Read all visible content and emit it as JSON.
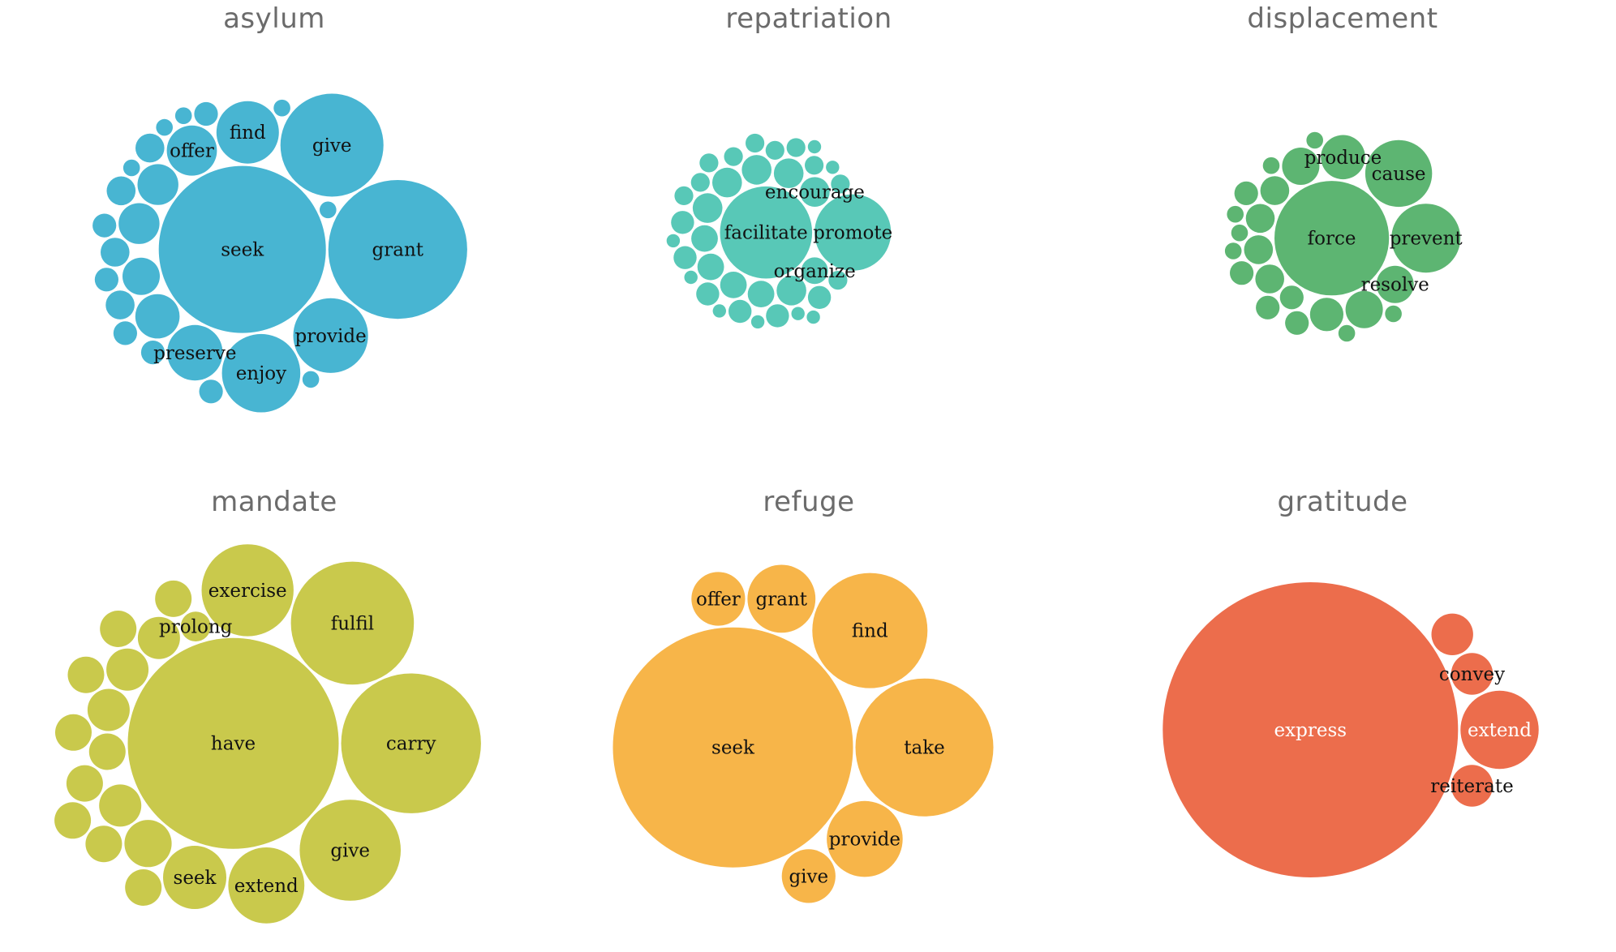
{
  "colors": {
    "asylum": "#48b5d2",
    "repatriation": "#58c8b7",
    "displacement": "#5db572",
    "mandate": "#c9c94c",
    "refuge": "#f7b549",
    "gratitude": "#ec6d4c",
    "label_dark": "#111111",
    "label_light": "#ffffff"
  },
  "chart_data": [
    {
      "type": "packed-bubble",
      "title": "asylum",
      "color_key": "asylum",
      "bubbles": [
        {
          "label": "seek",
          "value": 100
        },
        {
          "label": "grant",
          "value": 69
        },
        {
          "label": "give",
          "value": 38
        },
        {
          "label": "provide",
          "value": 20
        },
        {
          "label": "enjoy",
          "value": 22
        },
        {
          "label": "find",
          "value": 14
        },
        {
          "label": "preserve",
          "value": 11
        },
        {
          "label": "offer",
          "value": 9
        },
        {
          "label": "",
          "value": 7
        },
        {
          "label": "",
          "value": 6
        },
        {
          "label": "",
          "value": 6
        },
        {
          "label": "",
          "value": 5
        },
        {
          "label": "",
          "value": 3
        },
        {
          "label": "",
          "value": 3
        },
        {
          "label": "",
          "value": 3
        },
        {
          "label": "",
          "value": 3
        },
        {
          "label": "",
          "value": 2
        },
        {
          "label": "",
          "value": 2
        },
        {
          "label": "",
          "value": 2
        },
        {
          "label": "",
          "value": 2
        },
        {
          "label": "",
          "value": 2
        },
        {
          "label": "",
          "value": 2
        },
        {
          "label": "",
          "value": 1
        },
        {
          "label": "",
          "value": 1
        },
        {
          "label": "",
          "value": 1
        },
        {
          "label": "",
          "value": 1
        },
        {
          "label": "",
          "value": 1
        },
        {
          "label": "",
          "value": 1
        }
      ]
    },
    {
      "type": "packed-bubble",
      "title": "repatriation",
      "color_key": "repatriation",
      "bubbles": [
        {
          "label": "facilitate",
          "value": 48
        },
        {
          "label": "promote",
          "value": 33
        },
        {
          "label": "encourage",
          "value": 5
        },
        {
          "label": "organize",
          "value": 4
        },
        {
          "label": "",
          "value": 5
        },
        {
          "label": "",
          "value": 5
        },
        {
          "label": "",
          "value": 5
        },
        {
          "label": "",
          "value": 5
        },
        {
          "label": "",
          "value": 5
        },
        {
          "label": "",
          "value": 4
        },
        {
          "label": "",
          "value": 4
        },
        {
          "label": "",
          "value": 4
        },
        {
          "label": "",
          "value": 4
        },
        {
          "label": "",
          "value": 3
        },
        {
          "label": "",
          "value": 3
        },
        {
          "label": "",
          "value": 3
        },
        {
          "label": "",
          "value": 3
        },
        {
          "label": "",
          "value": 3
        },
        {
          "label": "",
          "value": 3
        },
        {
          "label": "",
          "value": 2
        },
        {
          "label": "",
          "value": 2
        },
        {
          "label": "",
          "value": 2
        },
        {
          "label": "",
          "value": 2
        },
        {
          "label": "",
          "value": 2
        },
        {
          "label": "",
          "value": 2
        },
        {
          "label": "",
          "value": 2
        },
        {
          "label": "",
          "value": 2
        },
        {
          "label": "",
          "value": 2
        },
        {
          "label": "",
          "value": 2
        },
        {
          "label": "",
          "value": 1
        },
        {
          "label": "",
          "value": 1
        },
        {
          "label": "",
          "value": 1
        },
        {
          "label": "",
          "value": 1
        },
        {
          "label": "",
          "value": 1
        },
        {
          "label": "",
          "value": 1
        },
        {
          "label": "",
          "value": 1
        },
        {
          "label": "",
          "value": 1
        }
      ]
    },
    {
      "type": "packed-bubble",
      "title": "displacement",
      "color_key": "displacement",
      "bubbles": [
        {
          "label": "force",
          "value": 47
        },
        {
          "label": "prevent",
          "value": 17
        },
        {
          "label": "cause",
          "value": 16
        },
        {
          "label": "produce",
          "value": 7
        },
        {
          "label": "resolve",
          "value": 5
        },
        {
          "label": "",
          "value": 5
        },
        {
          "label": "",
          "value": 5
        },
        {
          "label": "",
          "value": 4
        },
        {
          "label": "",
          "value": 3
        },
        {
          "label": "",
          "value": 3
        },
        {
          "label": "",
          "value": 3
        },
        {
          "label": "",
          "value": 3
        },
        {
          "label": "",
          "value": 2
        },
        {
          "label": "",
          "value": 2
        },
        {
          "label": "",
          "value": 2
        },
        {
          "label": "",
          "value": 2
        },
        {
          "label": "",
          "value": 2
        },
        {
          "label": "",
          "value": 1
        },
        {
          "label": "",
          "value": 1
        },
        {
          "label": "",
          "value": 1
        },
        {
          "label": "",
          "value": 1
        },
        {
          "label": "",
          "value": 1
        },
        {
          "label": "",
          "value": 1
        },
        {
          "label": "",
          "value": 1
        }
      ]
    },
    {
      "type": "packed-bubble",
      "title": "mandate",
      "color_key": "mandate",
      "bubbles": [
        {
          "label": "have",
          "value": 100
        },
        {
          "label": "carry",
          "value": 44
        },
        {
          "label": "fulfil",
          "value": 34
        },
        {
          "label": "give",
          "value": 23
        },
        {
          "label": "exercise",
          "value": 19
        },
        {
          "label": "extend",
          "value": 13
        },
        {
          "label": "seek",
          "value": 9
        },
        {
          "label": "prolong",
          "value": 2
        },
        {
          "label": "",
          "value": 5
        },
        {
          "label": "",
          "value": 4
        },
        {
          "label": "",
          "value": 4
        },
        {
          "label": "",
          "value": 4
        },
        {
          "label": "",
          "value": 4
        },
        {
          "label": "",
          "value": 3
        },
        {
          "label": "",
          "value": 3
        },
        {
          "label": "",
          "value": 3
        },
        {
          "label": "",
          "value": 3
        },
        {
          "label": "",
          "value": 3
        },
        {
          "label": "",
          "value": 3
        },
        {
          "label": "",
          "value": 3
        },
        {
          "label": "",
          "value": 3
        },
        {
          "label": "",
          "value": 3
        }
      ]
    },
    {
      "type": "packed-bubble",
      "title": "refuge",
      "color_key": "refuge",
      "bubbles": [
        {
          "label": "seek",
          "value": 100
        },
        {
          "label": "take",
          "value": 33
        },
        {
          "label": "find",
          "value": 23
        },
        {
          "label": "provide",
          "value": 10
        },
        {
          "label": "grant",
          "value": 8
        },
        {
          "label": "offer",
          "value": 5
        },
        {
          "label": "give",
          "value": 5
        }
      ]
    },
    {
      "type": "packed-bubble",
      "title": "gratitude",
      "color_key": "gratitude",
      "bubbles": [
        {
          "label": "express",
          "value": 100
        },
        {
          "label": "extend",
          "value": 7
        },
        {
          "label": "convey",
          "value": 2
        },
        {
          "label": "reiterate",
          "value": 2
        },
        {
          "label": "",
          "value": 2
        }
      ]
    }
  ]
}
